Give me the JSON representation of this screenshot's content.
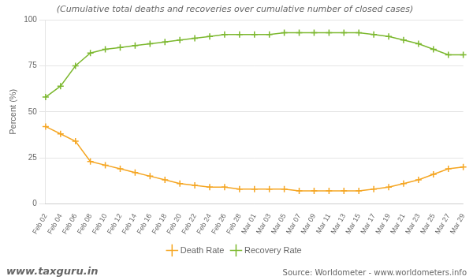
{
  "chart_data": {
    "type": "line",
    "subtitle": "(Cumulative total deaths and recoveries over cumulative number of closed cases)",
    "ylabel": "Percent (%)",
    "categories": [
      "Feb 02",
      "Feb 04",
      "Feb 06",
      "Feb 08",
      "Feb 10",
      "Feb 12",
      "Feb 14",
      "Feb 16",
      "Feb 18",
      "Feb 20",
      "Feb 22",
      "Feb 24",
      "Feb 26",
      "Feb 28",
      "Mar 01",
      "Mar 03",
      "Mar 05",
      "Mar 07",
      "Mar 09",
      "Mar 11",
      "Mar 13",
      "Mar 15",
      "Mar 17",
      "Mar 19",
      "Mar 21",
      "Mar 23",
      "Mar 25",
      "Mar 27",
      "Mar 29"
    ],
    "series": [
      {
        "name": "Death Rate",
        "color": "#f5a623",
        "marker": "+",
        "values": [
          42,
          38,
          34,
          23,
          21,
          19,
          17,
          15,
          13,
          11,
          10,
          9,
          9,
          8,
          8,
          8,
          8,
          7,
          7,
          7,
          7,
          7,
          8,
          9,
          11,
          13,
          16,
          19,
          20
        ]
      },
      {
        "name": "Recovery Rate",
        "color": "#7cb82f",
        "marker": "+",
        "values": [
          58,
          64,
          75,
          82,
          84,
          85,
          86,
          87,
          88,
          89,
          90,
          91,
          92,
          92,
          92,
          92,
          93,
          93,
          93,
          93,
          93,
          93,
          92,
          91,
          89,
          87,
          84,
          81,
          81
        ]
      }
    ],
    "ylim": [
      0,
      100
    ],
    "yticks": [
      0,
      25,
      50,
      75,
      100
    ],
    "grid": true,
    "legend": "bottom",
    "annotations": [
      "www.taxguru.in",
      "Source: Worldometer - www.worldometers.info"
    ]
  }
}
